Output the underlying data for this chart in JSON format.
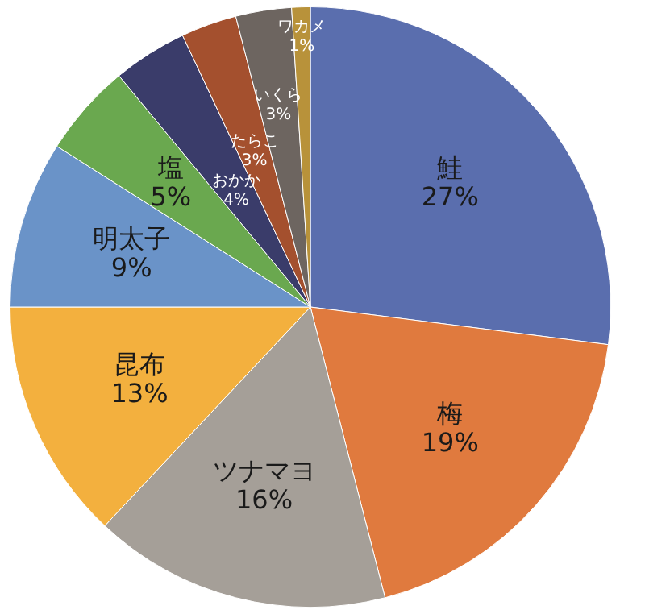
{
  "chart_data": {
    "type": "pie",
    "categories": [
      "鮭",
      "梅",
      "ツナマヨ",
      "昆布",
      "明太子",
      "塩",
      "おかか",
      "たらこ",
      "いくら",
      "ワカメ"
    ],
    "values": [
      27,
      19,
      16,
      13,
      9,
      5,
      4,
      3,
      3,
      1
    ],
    "colors": [
      "#5a6eae",
      "#e07a3e",
      "#a59f98",
      "#f3b03e",
      "#6a93c8",
      "#6aa84f",
      "#3a3c6a",
      "#a4502e",
      "#6d6560",
      "#b8923a"
    ],
    "value_labels": [
      "27%",
      "19%",
      "16%",
      "13%",
      "9%",
      "5%",
      "4%",
      "3%",
      "3%",
      "1%"
    ],
    "legend": false
  }
}
